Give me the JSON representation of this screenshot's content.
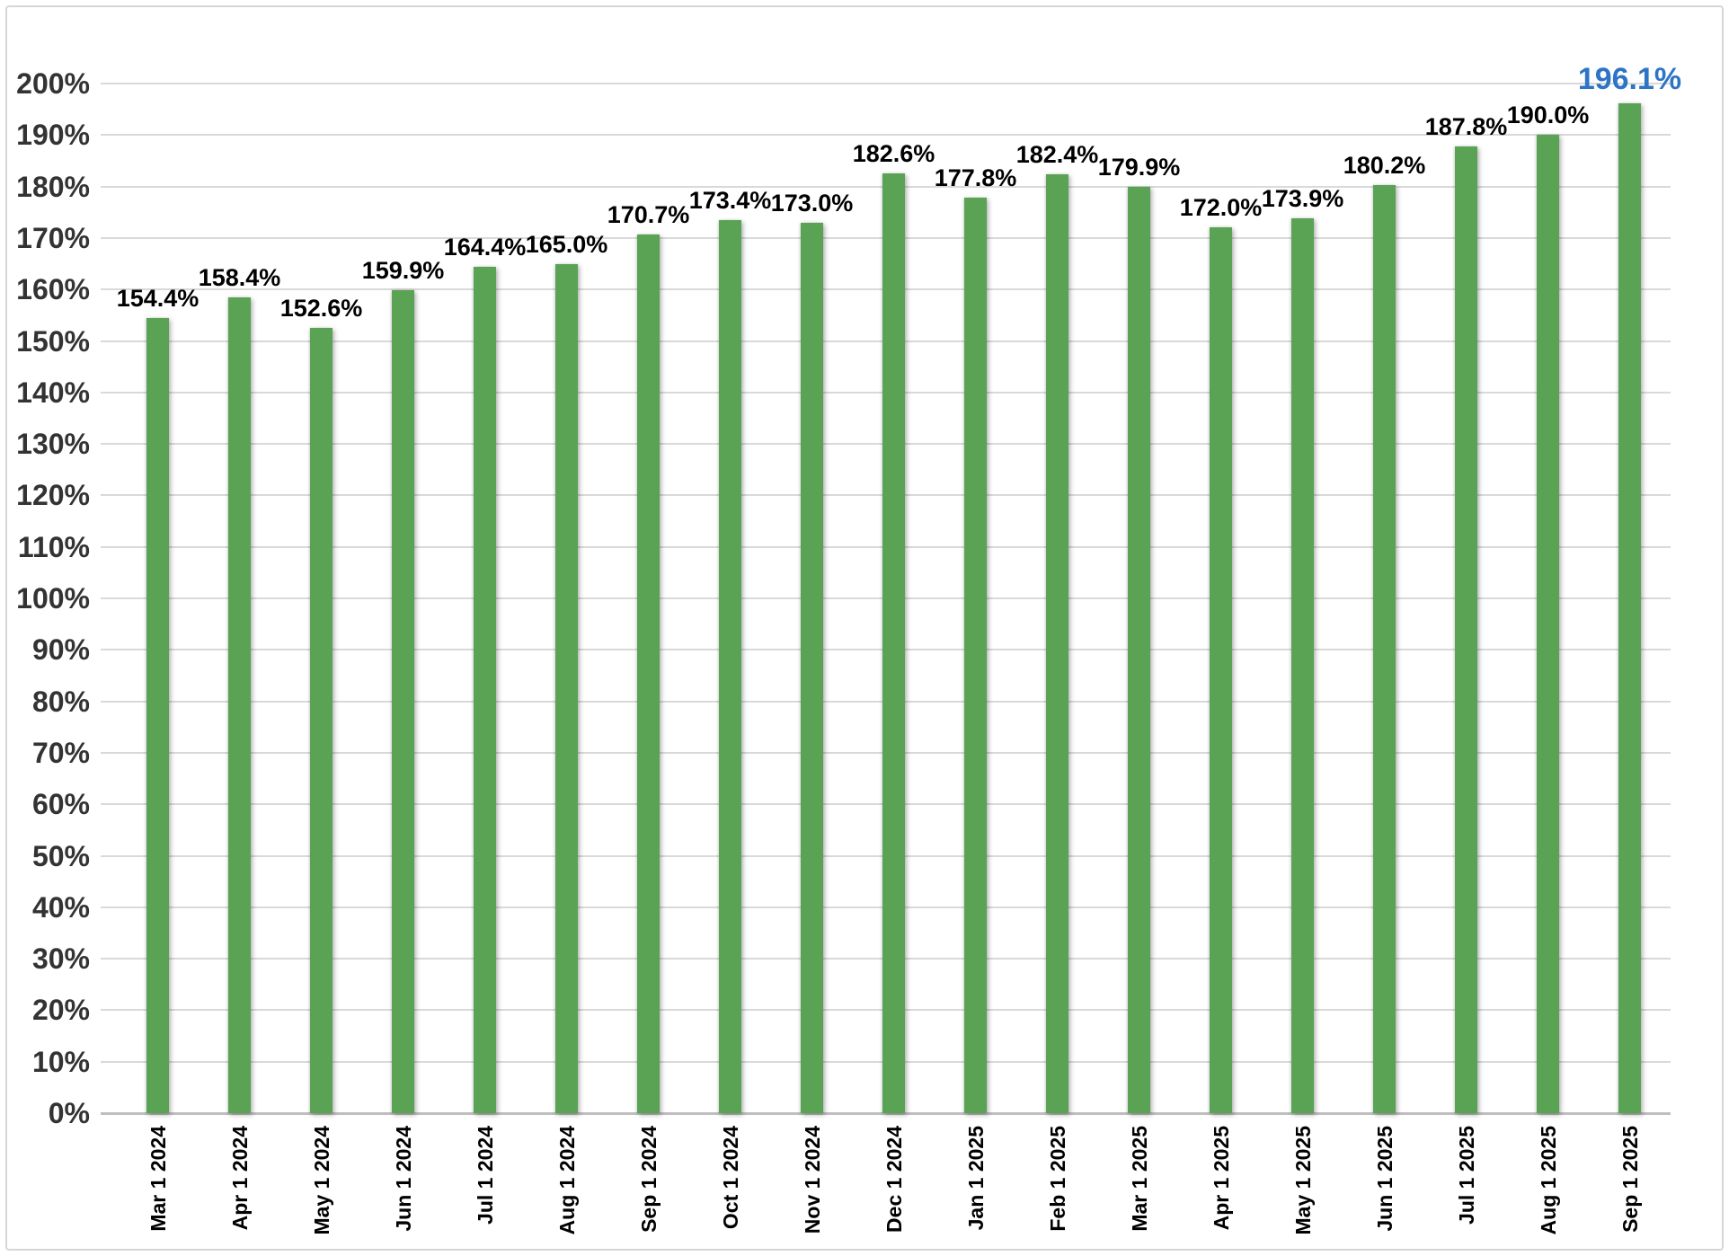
{
  "chart_data": {
    "type": "bar",
    "title": "",
    "xlabel": "",
    "ylabel": "",
    "categories": [
      "Mar 1 2024",
      "Apr 1 2024",
      "May 1 2024",
      "Jun 1 2024",
      "Jul 1 2024",
      "Aug 1 2024",
      "Sep 1 2024",
      "Oct 1 2024",
      "Nov 1 2024",
      "Dec 1 2024",
      "Jan 1 2025",
      "Feb 1 2025",
      "Mar 1 2025",
      "Apr 1 2025",
      "May 1 2025",
      "Jun 1 2025",
      "Jul 1 2025",
      "Aug 1 2025",
      "Sep 1 2025"
    ],
    "values": [
      154.4,
      158.4,
      152.6,
      159.9,
      164.4,
      165.0,
      170.7,
      173.4,
      173.0,
      182.6,
      177.8,
      182.4,
      179.9,
      172.0,
      173.9,
      180.2,
      187.8,
      190.0,
      196.1
    ],
    "data_labels": [
      "154.4%",
      "158.4%",
      "152.6%",
      "159.9%",
      "164.4%",
      "165.0%",
      "170.7%",
      "173.4%",
      "173.0%",
      "182.6%",
      "177.8%",
      "182.4%",
      "179.9%",
      "172.0%",
      "173.9%",
      "180.2%",
      "187.8%",
      "190.0%",
      "196.1%"
    ],
    "highlighted_index": 18,
    "highlighted_label": "196.1%",
    "ylim": [
      0,
      200
    ],
    "y_tick_step": 10,
    "y_ticks": [
      "0%",
      "10%",
      "20%",
      "30%",
      "40%",
      "50%",
      "60%",
      "70%",
      "80%",
      "90%",
      "100%",
      "110%",
      "120%",
      "130%",
      "140%",
      "150%",
      "160%",
      "170%",
      "180%",
      "190%",
      "200%"
    ],
    "grid": true,
    "legend_position": "none",
    "bar_color": "#5AA355",
    "data_label_color": "#000000",
    "highlight_color": "#2E74C6",
    "axis_tick_color": "#333333",
    "category_label_color": "#000000",
    "gridline_color": "#D9D9D9",
    "axis_line_color": "#BFBFBF"
  }
}
